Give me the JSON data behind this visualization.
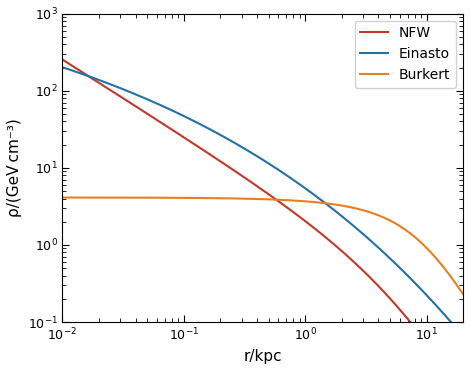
{
  "title": "",
  "xlabel": "r/kpc",
  "ylabel": "ρ/(GeV cm⁻³)",
  "xlim": [
    0.01,
    20
  ],
  "ylim": [
    0.1,
    1000
  ],
  "NFW": {
    "rho_s": 0.3,
    "r_s": 8.5,
    "label": "NFW",
    "color": "#c0392b"
  },
  "Einasto": {
    "rho_s": 0.033,
    "r_s": 28.44,
    "alpha": 0.17,
    "label": "Einasto",
    "color": "#2471a3"
  },
  "Burkert": {
    "rho_s": 4.13,
    "r_s": 9.26,
    "label": "Burkert",
    "color": "#e67e22"
  },
  "linewidth": 1.5,
  "legend_fontsize": 10,
  "axis_fontsize": 11,
  "tick_fontsize": 9,
  "background_color": "#ffffff"
}
